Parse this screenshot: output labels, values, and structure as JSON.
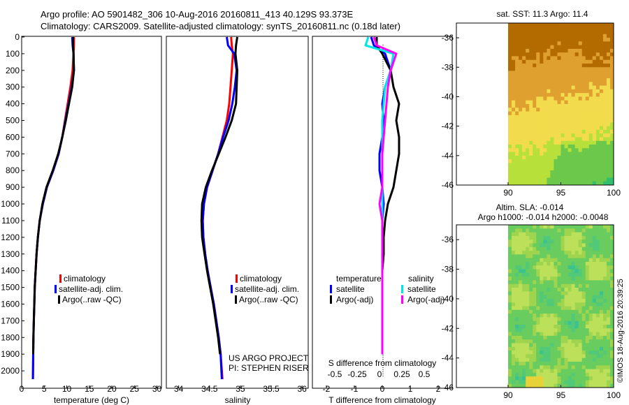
{
  "header": {
    "line1": "Argo profile: AO 5901482_306 10-Aug-2016 20160811_413 40.129S 93.373E",
    "line2": "Climatology: CARS2009. Satellite-adjusted climatology: synTS_20160811.nc (0.18d later)"
  },
  "credit": {
    "project": "US ARGO PROJECT",
    "pi": "PI: STEPHEN RISER",
    "stamp": "©IMOS 18-Aug-2016 20:39:25"
  },
  "colors": {
    "climatology": "#ff0000",
    "satellite": "#0000ff",
    "argo": "#000000",
    "satellite_salinity": "#00e5e5",
    "argo_adj_salinity": "#ff00ff"
  },
  "depth_axis": {
    "ticks": [
      "0",
      "100",
      "200",
      "300",
      "400",
      "500",
      "600",
      "700",
      "800",
      "900",
      "1000",
      "1100",
      "1200",
      "1300",
      "1400",
      "1500",
      "1600",
      "1700",
      "1800",
      "1900",
      "2000"
    ],
    "range": [
      0,
      2100
    ]
  },
  "legend_profile": {
    "items": [
      "climatology",
      "satellite-adj. clim.",
      "Argo(..raw -QC)"
    ]
  },
  "legend_diff": {
    "temp_header": "temperature",
    "sal_header": "salinity",
    "temp_items": [
      "satellite",
      "Argo(-adj)"
    ],
    "sal_items": [
      "satellite",
      "Argo(-adj)"
    ]
  },
  "maps": {
    "sst_title": "sat. SST: 11.3 Argo: 11.4",
    "sla_title1": "Altim. SLA: -0.014",
    "sla_title2": "Argo h1000: -0.014 h2000: -0.0048",
    "lat_ticks": [
      "-36",
      "-38",
      "-40",
      "-42",
      "-44",
      "-46"
    ],
    "lon_ticks": [
      "90",
      "95",
      "100"
    ],
    "lat_range": [
      -46,
      -35
    ],
    "lon_range": [
      90,
      100
    ],
    "data_lon_start": 90
  },
  "chart_data": [
    {
      "type": "line",
      "xlabel": "temperature (deg C)",
      "ylabel": "",
      "xlim": [
        0,
        31
      ],
      "ylim": [
        2100,
        0
      ],
      "xticks": [
        "0",
        "5",
        "10",
        "15",
        "20",
        "25",
        "30"
      ],
      "series": [
        {
          "name": "climatology",
          "color": "#ff0000",
          "x": [
            11.6,
            11.6,
            11.5,
            11.3,
            10.8,
            10.2,
            9.6,
            9.0,
            8.2,
            7.0,
            5.6,
            4.7,
            4.0,
            3.6,
            3.3,
            3.1,
            2.9,
            2.8,
            2.7,
            2.6,
            2.55,
            2.5
          ],
          "y": [
            0,
            50,
            100,
            200,
            300,
            400,
            500,
            600,
            700,
            800,
            900,
            1000,
            1100,
            1200,
            1300,
            1400,
            1500,
            1600,
            1700,
            1800,
            1900,
            2050
          ]
        },
        {
          "name": "satellite-adj. clim.",
          "color": "#0000ff",
          "x": [
            11.2,
            11.3,
            11.5,
            11.6,
            11.1,
            10.4,
            9.7,
            9.0,
            8.2,
            7.0,
            5.6,
            4.7,
            4.0,
            3.6,
            3.3,
            3.1,
            2.9,
            2.8,
            2.7,
            2.6,
            2.55,
            2.5
          ],
          "y": [
            0,
            50,
            100,
            200,
            300,
            400,
            500,
            600,
            700,
            800,
            900,
            1000,
            1100,
            1200,
            1300,
            1400,
            1500,
            1600,
            1700,
            1800,
            1900,
            2050
          ]
        },
        {
          "name": "Argo(..raw -QC)",
          "color": "#000000",
          "x": [
            11.4,
            11.4,
            11.5,
            11.6,
            11.2,
            10.5,
            9.8,
            9.0,
            8.1,
            6.9,
            5.5,
            4.6,
            4.0,
            3.6,
            3.3,
            3.1,
            2.9,
            2.8,
            2.7,
            2.6,
            2.55
          ],
          "y": [
            0,
            50,
            100,
            200,
            300,
            400,
            500,
            600,
            700,
            800,
            900,
            1000,
            1100,
            1200,
            1300,
            1400,
            1500,
            1600,
            1700,
            1800,
            1900
          ]
        }
      ]
    },
    {
      "type": "line",
      "xlabel": "salinity",
      "ylabel": "",
      "xlim": [
        33.8,
        36.1
      ],
      "ylim": [
        2100,
        0
      ],
      "xticks": [
        "34",
        "34.5",
        "35",
        "35.5",
        "36"
      ],
      "series": [
        {
          "name": "climatology",
          "color": "#ff0000",
          "x": [
            34.85,
            34.86,
            34.88,
            34.86,
            34.84,
            34.82,
            34.78,
            34.71,
            34.64,
            34.55,
            34.46,
            34.41,
            34.39,
            34.4,
            34.43,
            34.47,
            34.52,
            34.57,
            34.61,
            34.65,
            34.68,
            34.71
          ],
          "y": [
            0,
            50,
            100,
            200,
            300,
            400,
            500,
            600,
            700,
            800,
            900,
            1000,
            1100,
            1200,
            1300,
            1400,
            1500,
            1600,
            1700,
            1800,
            1900,
            2050
          ]
        },
        {
          "name": "satellite-adj. clim.",
          "color": "#0000ff",
          "x": [
            34.78,
            34.8,
            34.9,
            34.94,
            34.91,
            34.87,
            34.81,
            34.72,
            34.64,
            34.55,
            34.46,
            34.41,
            34.39,
            34.4,
            34.43,
            34.47,
            34.52,
            34.57,
            34.61,
            34.65,
            34.68,
            34.7
          ],
          "y": [
            0,
            50,
            100,
            200,
            300,
            400,
            500,
            600,
            700,
            800,
            900,
            1000,
            1100,
            1200,
            1300,
            1400,
            1500,
            1600,
            1700,
            1800,
            1900,
            2050
          ]
        },
        {
          "name": "Argo(..raw -QC)",
          "color": "#000000",
          "x": [
            34.95,
            34.93,
            34.92,
            34.95,
            34.94,
            34.93,
            34.86,
            34.76,
            34.65,
            34.54,
            34.44,
            34.38,
            34.37,
            34.38,
            34.42,
            34.46,
            34.51,
            34.56,
            34.6,
            34.64,
            34.67
          ],
          "y": [
            0,
            50,
            100,
            200,
            300,
            400,
            500,
            600,
            700,
            800,
            900,
            1000,
            1100,
            1200,
            1300,
            1400,
            1500,
            1600,
            1700,
            1800,
            1900
          ]
        }
      ]
    },
    {
      "type": "line",
      "xlabel": "T difference from climatology",
      "xlabel_top": "S difference from climatology",
      "ylabel": "",
      "xlim": [
        -2.5,
        2.5
      ],
      "ylim": [
        2100,
        0
      ],
      "xticks": [
        "-2",
        "-1",
        "0",
        "1",
        "2"
      ],
      "xticks_top": [
        "-0.5",
        "-0.25",
        "0",
        "0.25",
        "0.5"
      ],
      "series": [
        {
          "name": "satellite (temperature)",
          "color": "#0000ff",
          "x": [
            -0.4,
            -0.3,
            0.1,
            0.3,
            0.1,
            0.0,
            0.05,
            0.0,
            -0.1,
            -0.1,
            0.0,
            0.05,
            0.0,
            0.0,
            0.0,
            0.0,
            0.0,
            0.0,
            0.0,
            0.0,
            0.0
          ],
          "y": [
            0,
            50,
            100,
            200,
            300,
            400,
            500,
            600,
            700,
            800,
            900,
            1000,
            1100,
            1200,
            1300,
            1400,
            1500,
            1600,
            1700,
            1800,
            1900
          ]
        },
        {
          "name": "Argo(-adj) (temperature)",
          "color": "#000000",
          "x": [
            -0.2,
            -0.2,
            0.0,
            0.3,
            0.4,
            0.6,
            0.5,
            0.6,
            0.6,
            0.5,
            0.4,
            0.2,
            0.1,
            0.05,
            0.05,
            0.0,
            0.0,
            0.0,
            0.0,
            0.0,
            0.0
          ],
          "y": [
            0,
            50,
            100,
            200,
            300,
            400,
            500,
            600,
            700,
            800,
            900,
            1000,
            1100,
            1200,
            1300,
            1400,
            1500,
            1600,
            1700,
            1800,
            1900
          ]
        },
        {
          "name": "satellite (salinity)",
          "color": "#00e5e5",
          "x": [
            -0.5,
            -0.6,
            0.4,
            0.3,
            0.1,
            0.05,
            0.0,
            0.0,
            0.0,
            0.0,
            0.0,
            0.0,
            0.0,
            0.0,
            0.0,
            0.0,
            0.0,
            0.0,
            0.0,
            0.0,
            0.0
          ],
          "y": [
            0,
            50,
            100,
            200,
            300,
            400,
            500,
            600,
            700,
            800,
            900,
            1000,
            1100,
            1200,
            1300,
            1400,
            1500,
            1600,
            1700,
            1800,
            1900
          ]
        },
        {
          "name": "Argo(-adj) (salinity)",
          "color": "#ff00ff",
          "x": [
            -0.3,
            -0.2,
            0.5,
            0.3,
            0.2,
            0.15,
            0.1,
            0.05,
            0.0,
            0.0,
            0.0,
            -0.1,
            0.0,
            0.0,
            0.0,
            0.0,
            0.0,
            0.0,
            0.0,
            0.0,
            0.0
          ],
          "y": [
            0,
            50,
            100,
            200,
            300,
            400,
            500,
            600,
            700,
            800,
            900,
            1000,
            1100,
            1200,
            1300,
            1400,
            1500,
            1600,
            1700,
            1800,
            1900
          ]
        }
      ]
    }
  ]
}
